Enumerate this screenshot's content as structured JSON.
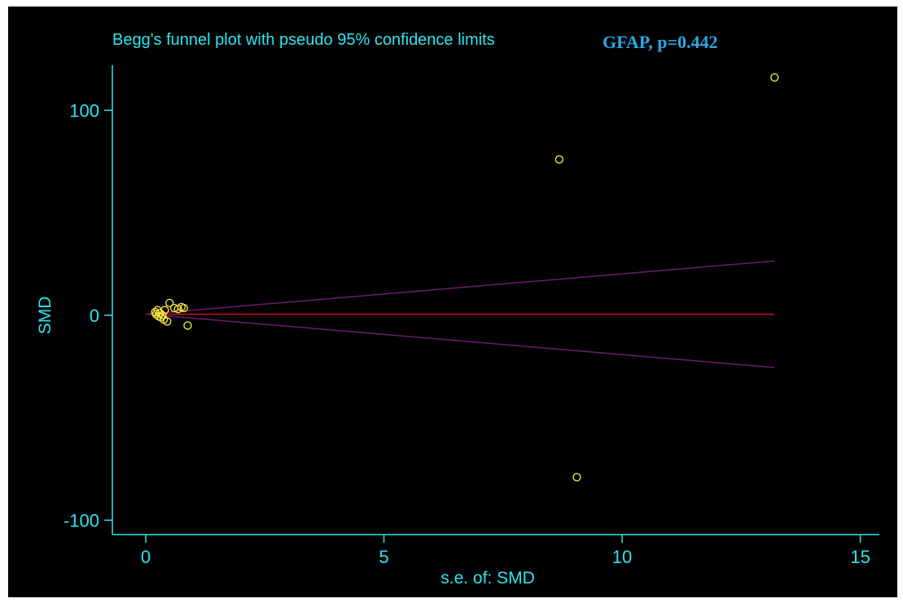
{
  "chart_data": {
    "type": "scatter",
    "title": "Begg's funnel plot with pseudo 95% confidence limits",
    "subtitle": "GFAP, p=0.442",
    "xlabel": "s.e. of: SMD",
    "ylabel": "SMD",
    "xlim": [
      -0.7,
      15.4
    ],
    "ylim": [
      -107,
      122
    ],
    "x_ticks": [
      0,
      5,
      10,
      15
    ],
    "y_ticks": [
      -100,
      0,
      100
    ],
    "grid": false,
    "legend": "none",
    "pooled_estimate": 0.5,
    "confidence_limits": {
      "se_max": 13.2,
      "upper_at_se_max": 26.5,
      "lower_at_se_max": -25.5
    },
    "points": [
      {
        "x": 0.2,
        "y": 1.5
      },
      {
        "x": 0.22,
        "y": 0.5
      },
      {
        "x": 0.25,
        "y": 2.5
      },
      {
        "x": 0.27,
        "y": -0.5
      },
      {
        "x": 0.3,
        "y": 1.0
      },
      {
        "x": 0.32,
        "y": -1.0
      },
      {
        "x": 0.35,
        "y": 0.0
      },
      {
        "x": 0.38,
        "y": -2.0
      },
      {
        "x": 0.4,
        "y": 2.5
      },
      {
        "x": 0.45,
        "y": -3.0
      },
      {
        "x": 0.5,
        "y": 6.0
      },
      {
        "x": 0.6,
        "y": 3.5
      },
      {
        "x": 0.68,
        "y": 3.0
      },
      {
        "x": 0.75,
        "y": 4.0
      },
      {
        "x": 0.8,
        "y": 3.5
      },
      {
        "x": 0.88,
        "y": -5.0
      },
      {
        "x": 8.68,
        "y": 76.0
      },
      {
        "x": 9.05,
        "y": -79.0
      },
      {
        "x": 13.2,
        "y": 116.0
      }
    ],
    "colors": {
      "background": "#000000",
      "axis": "#2ee5f0",
      "title": "#2ee5f0",
      "subtitle": "#29a9e8",
      "points": "#f0e33a",
      "pooled_line": "#c8102e",
      "limit_lines": "#6b1a6e"
    }
  }
}
